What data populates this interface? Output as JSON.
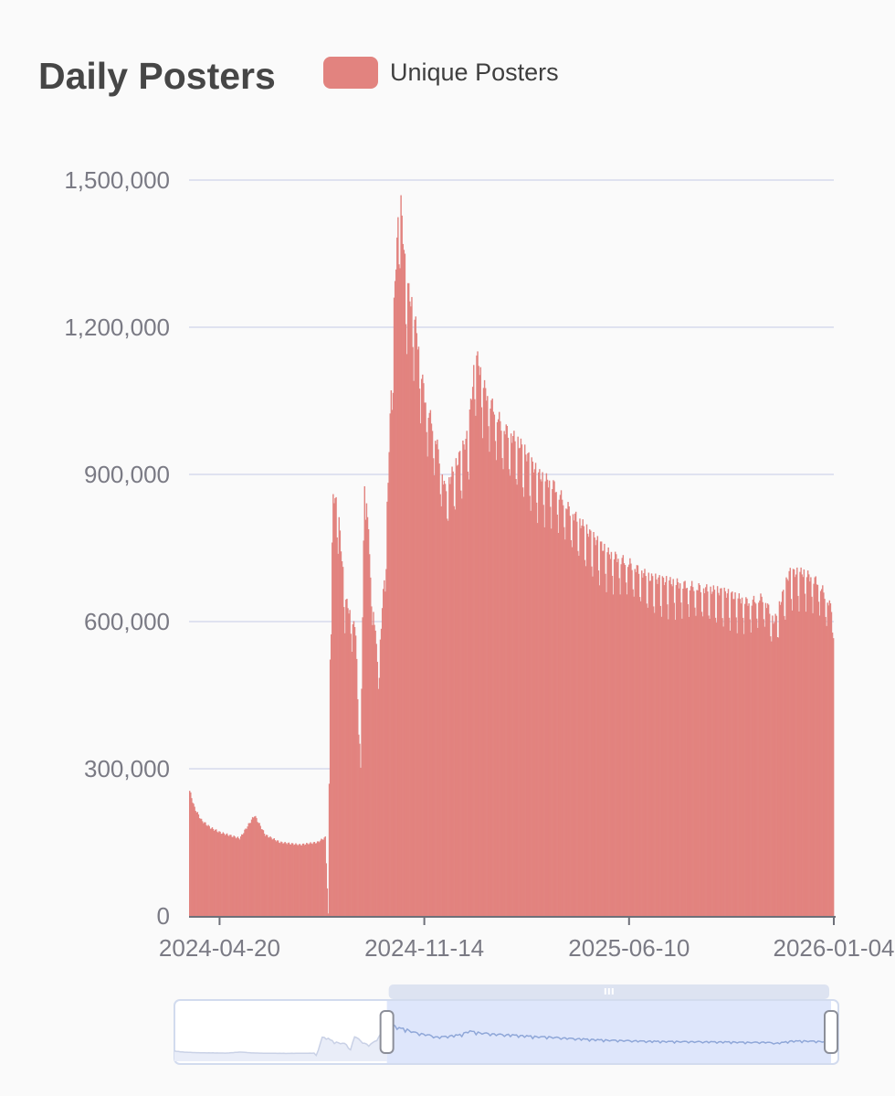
{
  "chart_data": {
    "type": "bar",
    "title": "Daily Posters",
    "legend": {
      "placement": "top",
      "entries": [
        {
          "name": "Unique Posters",
          "color": "#e2837f"
        }
      ]
    },
    "series": [
      {
        "name": "Unique Posters",
        "color": "#e2837f"
      }
    ],
    "y_axis": {
      "ylim": [
        0,
        1500000
      ],
      "ticks": [
        0,
        300000,
        600000,
        900000,
        1200000,
        1500000
      ],
      "tick_labels": [
        "0",
        "300,000",
        "600,000",
        "900,000",
        "1,200,000",
        "1,500,000"
      ],
      "grid": true
    },
    "x_axis": {
      "start": "2024-03-20",
      "end": "2026-01-04",
      "ticks": [
        "2024-04-20",
        "2024-11-14",
        "2025-06-10",
        "2026-01-04"
      ]
    },
    "data_profile": [
      [
        "2024-03-20",
        255000
      ],
      [
        "2024-03-25",
        220000
      ],
      [
        "2024-04-01",
        195000
      ],
      [
        "2024-04-10",
        180000
      ],
      [
        "2024-04-20",
        170000
      ],
      [
        "2024-05-10",
        158000
      ],
      [
        "2024-05-25",
        205000
      ],
      [
        "2024-06-05",
        165000
      ],
      [
        "2024-06-20",
        150000
      ],
      [
        "2024-07-10",
        145000
      ],
      [
        "2024-07-28",
        150000
      ],
      [
        "2024-08-05",
        160000
      ],
      [
        "2024-08-08",
        5000
      ],
      [
        "2024-08-10",
        530000
      ],
      [
        "2024-08-13",
        860000
      ],
      [
        "2024-08-18",
        830000
      ],
      [
        "2024-08-25",
        650000
      ],
      [
        "2024-09-05",
        580000
      ],
      [
        "2024-09-10",
        300000
      ],
      [
        "2024-09-14",
        930000
      ],
      [
        "2024-09-20",
        700000
      ],
      [
        "2024-09-28",
        500000
      ],
      [
        "2024-10-05",
        720000
      ],
      [
        "2024-10-15",
        1300000
      ],
      [
        "2024-10-20",
        1480000
      ],
      [
        "2024-10-26",
        1300000
      ],
      [
        "2024-11-04",
        1220000
      ],
      [
        "2024-11-14",
        1060000
      ],
      [
        "2024-11-25",
        980000
      ],
      [
        "2024-12-05",
        870000
      ],
      [
        "2024-12-18",
        930000
      ],
      [
        "2024-12-28",
        980000
      ],
      [
        "2025-01-05",
        1150000
      ],
      [
        "2025-01-15",
        1070000
      ],
      [
        "2025-02-01",
        1000000
      ],
      [
        "2025-02-20",
        960000
      ],
      [
        "2025-03-10",
        900000
      ],
      [
        "2025-03-25",
        880000
      ],
      [
        "2025-04-10",
        830000
      ],
      [
        "2025-05-01",
        780000
      ],
      [
        "2025-05-20",
        740000
      ],
      [
        "2025-06-10",
        720000
      ],
      [
        "2025-07-01",
        690000
      ],
      [
        "2025-07-25",
        680000
      ],
      [
        "2025-08-20",
        670000
      ],
      [
        "2025-09-15",
        660000
      ],
      [
        "2025-10-10",
        640000
      ],
      [
        "2025-10-25",
        650000
      ],
      [
        "2025-11-05",
        600000
      ],
      [
        "2025-11-20",
        700000
      ],
      [
        "2025-12-05",
        700000
      ],
      [
        "2025-12-20",
        680000
      ],
      [
        "2026-01-04",
        620000
      ]
    ]
  },
  "zoom_slider": {
    "range_start": 0.32,
    "range_end": 1.0,
    "handle_color": "#ffffff",
    "selected_fill": "#d3defa"
  }
}
